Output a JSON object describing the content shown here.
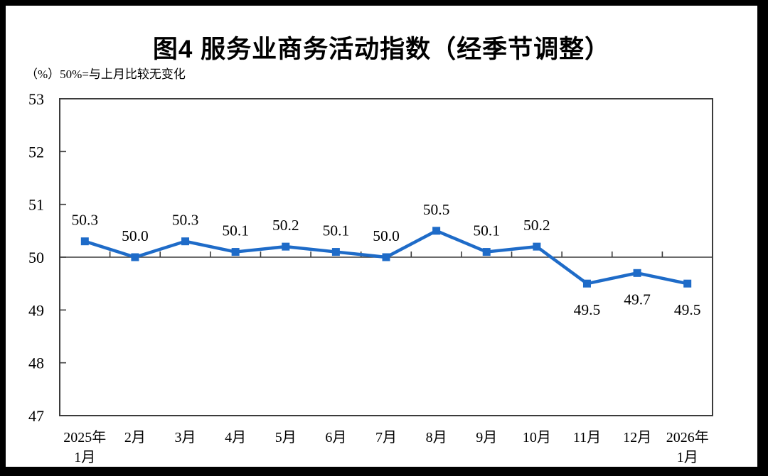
{
  "page": {
    "title": "图4  服务业商务活动指数（经季节调整）",
    "subtitle": "（%）50%=与上月比较无变化"
  },
  "chart_data": {
    "type": "line",
    "title": "图4  服务业商务活动指数（经季节调整）",
    "unit_note": "（%）50%=与上月比较无变化",
    "categories": [
      "2025年1月",
      "2月",
      "3月",
      "4月",
      "5月",
      "6月",
      "7月",
      "8月",
      "9月",
      "10月",
      "11月",
      "12月",
      "2026年1月"
    ],
    "category_lines": [
      [
        "2025年",
        "1月"
      ],
      [
        "2月"
      ],
      [
        "3月"
      ],
      [
        "4月"
      ],
      [
        "5月"
      ],
      [
        "6月"
      ],
      [
        "7月"
      ],
      [
        "8月"
      ],
      [
        "9月"
      ],
      [
        "10月"
      ],
      [
        "11月"
      ],
      [
        "12月"
      ],
      [
        "2026年",
        "1月"
      ]
    ],
    "series": [
      {
        "name": "服务业商务活动指数（经季节调整）",
        "values": [
          50.3,
          50.0,
          50.3,
          50.1,
          50.2,
          50.1,
          50.0,
          50.5,
          50.1,
          50.2,
          49.5,
          49.7,
          49.5
        ],
        "labels": [
          "50.3",
          "50.0",
          "50.3",
          "50.1",
          "50.2",
          "50.1",
          "50.0",
          "50.5",
          "50.1",
          "50.2",
          "49.5",
          "49.7",
          "49.5"
        ]
      }
    ],
    "ylim": [
      47,
      53
    ],
    "yticks": [
      47,
      48,
      49,
      50,
      51,
      52,
      53
    ],
    "baseline_value": 50,
    "xlabel": "",
    "ylabel": "%",
    "grid": false,
    "legend_position": "none",
    "marker": "square",
    "line_color": "#1e6bc8",
    "axis_color": "#3b3b3b",
    "label_color": "#000000",
    "background_color": "#ffffff",
    "frame_color": "#000000"
  }
}
